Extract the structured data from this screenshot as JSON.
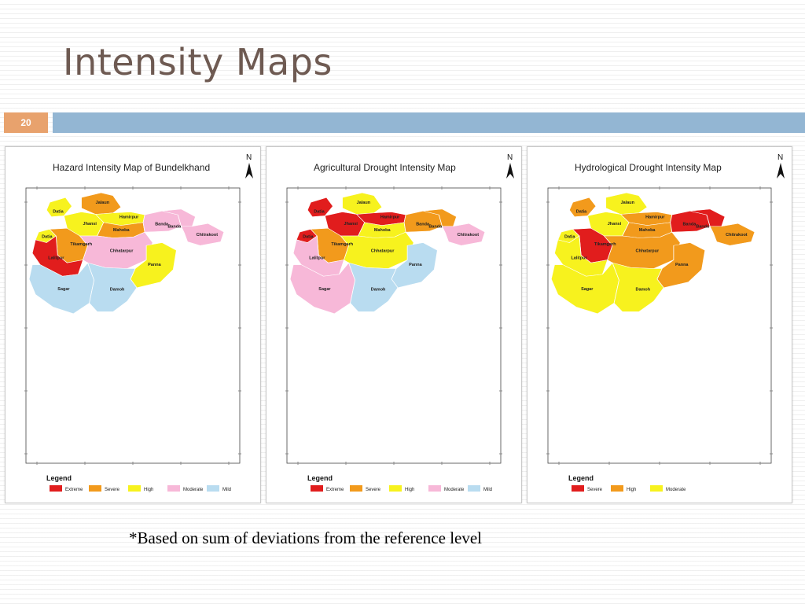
{
  "slide": {
    "title": "Intensity Maps",
    "number": "20",
    "footnote": "*Based on sum of deviations from the reference level"
  },
  "colors": {
    "extreme": "#e11d1d",
    "severe": "#f29a1c",
    "high": "#f7f21e",
    "moderate": "#f7b8d8",
    "mild": "#b9dcf0",
    "title_color": "#6e5a52",
    "accent_bar": "#93b6d3",
    "number_box": "#e8a26d"
  },
  "maps": [
    {
      "title": "Hazard Intensity Map of Bundelkhand",
      "north_label": "N",
      "legend_title": "Legend",
      "legend": [
        {
          "label": "Extreme",
          "color": "#e11d1d"
        },
        {
          "label": "Severe",
          "color": "#f29a1c"
        },
        {
          "label": "High",
          "color": "#f7f21e"
        },
        {
          "label": "Moderate",
          "color": "#f7b8d8"
        },
        {
          "label": "Mild",
          "color": "#b9dcf0"
        }
      ],
      "districts": {
        "jalaun": {
          "label": "Jalaun",
          "class": "Severe"
        },
        "datia": {
          "label": "Datia",
          "class": "High"
        },
        "hamirpur": {
          "label": "Hamirpur",
          "class": "High"
        },
        "jhansi": {
          "label": "Jhansi",
          "class": "High"
        },
        "mahoba": {
          "label": "Mahoba",
          "class": "Severe"
        },
        "banda": {
          "label": "Banda",
          "class": "Moderate"
        },
        "banda2": {
          "label": "Banda",
          "class": "Moderate"
        },
        "chitrakoot": {
          "label": "Chitrakoot",
          "class": "Moderate"
        },
        "datia2": {
          "label": "Datia",
          "class": "High"
        },
        "tikamgarh": {
          "label": "Tikamgarh",
          "class": "Severe"
        },
        "chhatarpur": {
          "label": "Chhatarpur",
          "class": "Moderate"
        },
        "lalitpur": {
          "label": "Lalitpur",
          "class": "Extreme"
        },
        "panna": {
          "label": "Panna",
          "class": "High"
        },
        "sagar": {
          "label": "Sagar",
          "class": "Mild"
        },
        "damoh": {
          "label": "Damoh",
          "class": "Mild"
        }
      }
    },
    {
      "title": "Agricultural Drought Intensity Map",
      "north_label": "N",
      "legend_title": "Legend",
      "legend": [
        {
          "label": "Extreme",
          "color": "#e11d1d"
        },
        {
          "label": "Severe",
          "color": "#f29a1c"
        },
        {
          "label": "High",
          "color": "#f7f21e"
        },
        {
          "label": "Moderate",
          "color": "#f7b8d8"
        },
        {
          "label": "Mild",
          "color": "#b9dcf0"
        }
      ],
      "districts": {
        "jalaun": {
          "label": "Jalaun",
          "class": "High"
        },
        "datia": {
          "label": "Datia",
          "class": "Extreme"
        },
        "hamirpur": {
          "label": "Hamirpur",
          "class": "Extreme"
        },
        "jhansi": {
          "label": "Jhansi",
          "class": "Extreme"
        },
        "mahoba": {
          "label": "Mahoba",
          "class": "High"
        },
        "banda": {
          "label": "Banda",
          "class": "Severe"
        },
        "banda2": {
          "label": "Banda",
          "class": "Severe"
        },
        "chitrakoot": {
          "label": "Chitrakoot",
          "class": "Moderate"
        },
        "datia2": {
          "label": "Datia",
          "class": "Extreme"
        },
        "tikamgarh": {
          "label": "Tikamgarh",
          "class": "Severe"
        },
        "chhatarpur": {
          "label": "Chhatarpur",
          "class": "High"
        },
        "lalitpur": {
          "label": "Lalitpur",
          "class": "Moderate"
        },
        "panna": {
          "label": "Panna",
          "class": "Mild"
        },
        "sagar": {
          "label": "Sagar",
          "class": "Moderate"
        },
        "damoh": {
          "label": "Damoh",
          "class": "Mild"
        }
      }
    },
    {
      "title": "Hydrological Drought Intensity Map",
      "north_label": "N",
      "legend_title": "Legend",
      "legend": [
        {
          "label": "Severe",
          "color": "#e11d1d"
        },
        {
          "label": "High",
          "color": "#f29a1c"
        },
        {
          "label": "Moderate",
          "color": "#f7f21e"
        }
      ],
      "districts": {
        "jalaun": {
          "label": "Jalaun",
          "class": "Moderate"
        },
        "datia": {
          "label": "Datia",
          "class": "High"
        },
        "hamirpur": {
          "label": "Hamirpur",
          "class": "High"
        },
        "jhansi": {
          "label": "Jhansi",
          "class": "Moderate"
        },
        "mahoba": {
          "label": "Mahoba",
          "class": "High"
        },
        "banda": {
          "label": "Banda",
          "class": "Severe"
        },
        "banda2": {
          "label": "Banda",
          "class": "Severe"
        },
        "chitrakoot": {
          "label": "Chitrakoot",
          "class": "High"
        },
        "datia2": {
          "label": "Datia",
          "class": "Moderate"
        },
        "tikamgarh": {
          "label": "Tikamgarh",
          "class": "Severe"
        },
        "chhatarpur": {
          "label": "Chhatarpur",
          "class": "High"
        },
        "lalitpur": {
          "label": "Lalitpur",
          "class": "Moderate"
        },
        "panna": {
          "label": "Panna",
          "class": "High"
        },
        "sagar": {
          "label": "Sagar",
          "class": "Moderate"
        },
        "damoh": {
          "label": "Damoh",
          "class": "Moderate"
        }
      }
    }
  ]
}
